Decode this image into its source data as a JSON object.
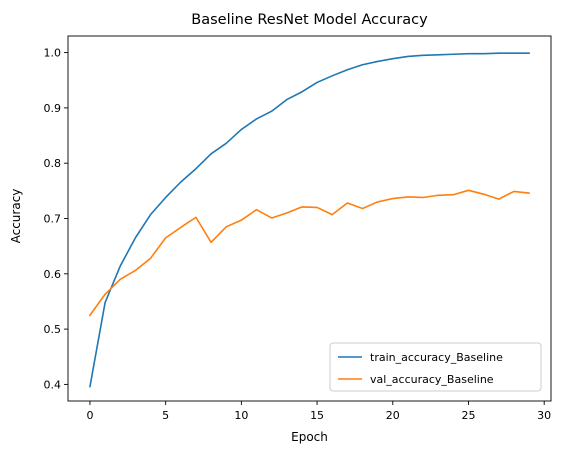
{
  "chart_data": {
    "type": "line",
    "title": "Baseline ResNet Model Accuracy",
    "xlabel": "Epoch",
    "ylabel": "Accuracy",
    "xlim": [
      -1.45,
      30.45
    ],
    "ylim": [
      0.37,
      1.03
    ],
    "x_ticks": [
      0,
      5,
      10,
      15,
      20,
      25,
      30
    ],
    "y_ticks": [
      0.4,
      0.5,
      0.6,
      0.7,
      0.8,
      0.9,
      1.0
    ],
    "y_tick_labels": [
      "0.4",
      "0.5",
      "0.6",
      "0.7",
      "0.8",
      "0.9",
      "1.0"
    ],
    "grid": false,
    "legend_position": "lower-right",
    "x": [
      0,
      1,
      2,
      3,
      4,
      5,
      6,
      7,
      8,
      9,
      10,
      11,
      12,
      13,
      14,
      15,
      16,
      17,
      18,
      19,
      20,
      21,
      22,
      23,
      24,
      25,
      26,
      27,
      28,
      29
    ],
    "series": [
      {
        "name": "train_accuracy_Baseline",
        "color": "#1f77b4",
        "values": [
          0.396,
          0.548,
          0.614,
          0.665,
          0.707,
          0.738,
          0.766,
          0.79,
          0.817,
          0.836,
          0.861,
          0.88,
          0.894,
          0.915,
          0.929,
          0.946,
          0.958,
          0.969,
          0.978,
          0.984,
          0.989,
          0.993,
          0.995,
          0.996,
          0.997,
          0.998,
          0.998,
          0.999,
          0.999,
          0.999
        ]
      },
      {
        "name": "val_accuracy_Baseline",
        "color": "#ff7f0e",
        "values": [
          0.525,
          0.563,
          0.59,
          0.606,
          0.628,
          0.665,
          0.684,
          0.702,
          0.657,
          0.685,
          0.697,
          0.716,
          0.701,
          0.71,
          0.721,
          0.72,
          0.707,
          0.728,
          0.718,
          0.73,
          0.736,
          0.739,
          0.738,
          0.742,
          0.743,
          0.751,
          0.744,
          0.735,
          0.749,
          0.746
        ]
      }
    ]
  }
}
